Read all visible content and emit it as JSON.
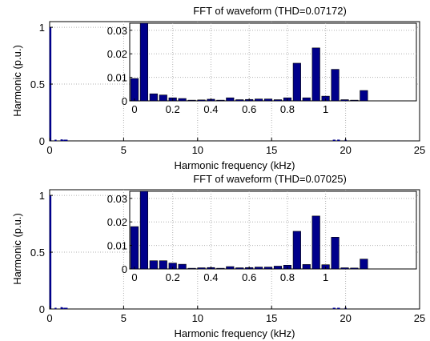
{
  "chart_data": [
    {
      "type": "bar",
      "title": "FFT of waveform (THD=0.07172)",
      "xlabel": "Harmonic frequency (kHz)",
      "ylabel": "Harmonic (p.u.)",
      "xlim": [
        0,
        25
      ],
      "ylim": [
        0,
        1.05
      ],
      "xticks": [
        "0",
        "5",
        "10",
        "15",
        "20",
        "25"
      ],
      "yticks": [
        "0",
        "0.5",
        "1"
      ],
      "grid": true,
      "bar_color": "#00008b",
      "spectrum": {
        "x": [
          0.05,
          0.4,
          0.8,
          0.85,
          1.0,
          1.05,
          1.15,
          19.2,
          19.25,
          19.5,
          19.55,
          20.0
        ],
        "values": [
          1.0,
          0.002,
          0.013,
          0.009,
          0.003,
          0.002,
          0.004,
          0.002,
          0.003,
          0.011,
          0.007,
          0.002
        ]
      },
      "inset": {
        "type": "bar",
        "xlim": [
          -0.025,
          1.475
        ],
        "ylim": [
          0,
          0.033
        ],
        "xticks": [
          "0",
          "0.2",
          "0.4",
          "0.6",
          "0.8",
          "1"
        ],
        "yticks": [
          "0",
          "0.01",
          "0.02",
          "0.03"
        ],
        "x": [
          0,
          0.05,
          0.1,
          0.15,
          0.2,
          0.25,
          0.3,
          0.35,
          0.4,
          0.45,
          0.5,
          0.55,
          0.6,
          0.65,
          0.7,
          0.75,
          0.8,
          0.85,
          0.9,
          0.95,
          1.0,
          1.05,
          1.1,
          1.15,
          1.2
        ],
        "values": [
          0.0095,
          0.033,
          0.003,
          0.0025,
          0.0013,
          0.001,
          0.0003,
          0.0004,
          0.0007,
          0.0003,
          0.0013,
          0.0005,
          0.0006,
          0.0008,
          0.0008,
          0.0005,
          0.0013,
          0.016,
          0.0013,
          0.0225,
          0.002,
          0.0134,
          0.0005,
          0.0003,
          0.0044
        ]
      }
    },
    {
      "type": "bar",
      "title": "FFT of waveform (THD=0.07025)",
      "xlabel": "Harmonic frequency (kHz)",
      "ylabel": "Harmonic (p.u.)",
      "xlim": [
        0,
        25
      ],
      "ylim": [
        0,
        1.05
      ],
      "xticks": [
        "0",
        "5",
        "10",
        "15",
        "20",
        "25"
      ],
      "yticks": [
        "0",
        "0.5",
        "1"
      ],
      "grid": true,
      "bar_color": "#00008b",
      "spectrum": {
        "x": [
          0.05,
          0.4,
          0.8,
          0.85,
          1.0,
          1.05,
          1.15,
          19.2,
          19.25,
          19.5,
          19.55,
          20.0
        ],
        "values": [
          1.0,
          0.002,
          0.016,
          0.012,
          0.003,
          0.002,
          0.004,
          0.002,
          0.003,
          0.01,
          0.007,
          0.002
        ]
      },
      "inset": {
        "type": "bar",
        "xlim": [
          -0.025,
          1.475
        ],
        "ylim": [
          0,
          0.033
        ],
        "xticks": [
          "0",
          "0.2",
          "0.4",
          "0.6",
          "0.8",
          "1"
        ],
        "yticks": [
          "0",
          "0.01",
          "0.02",
          "0.03"
        ],
        "x": [
          0,
          0.05,
          0.1,
          0.15,
          0.2,
          0.25,
          0.3,
          0.35,
          0.4,
          0.45,
          0.5,
          0.55,
          0.6,
          0.65,
          0.7,
          0.75,
          0.8,
          0.85,
          0.9,
          0.95,
          1.0,
          1.05,
          1.1,
          1.15,
          1.2
        ],
        "values": [
          0.018,
          0.033,
          0.0035,
          0.0035,
          0.0025,
          0.002,
          0.0003,
          0.0005,
          0.0006,
          0.0003,
          0.001,
          0.0005,
          0.0006,
          0.0008,
          0.0008,
          0.0012,
          0.0016,
          0.016,
          0.0019,
          0.0225,
          0.0018,
          0.0135,
          0.0005,
          0.0004,
          0.0042
        ]
      }
    }
  ]
}
